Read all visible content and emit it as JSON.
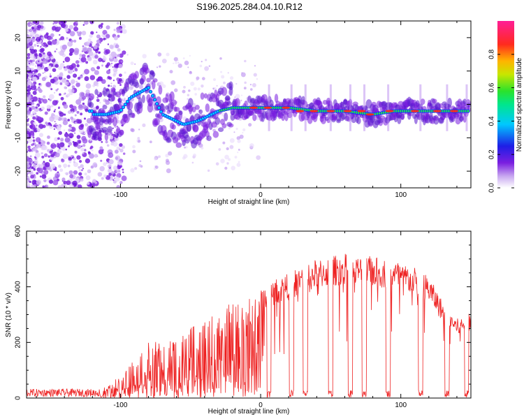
{
  "title": "S196.2025.284.04.10.R12",
  "chart_data": [
    {
      "type": "heatmap",
      "name": "spectrogram",
      "xlabel": "Height of straight line (km)",
      "ylabel": "Frequency (Hz)",
      "xlim": [
        -167,
        150
      ],
      "ylim": [
        -25,
        25
      ],
      "xticks": [
        -100,
        0,
        100
      ],
      "yticks": [
        -20,
        -10,
        0,
        10,
        20
      ],
      "xtick_labels": [
        "-100",
        "0",
        "100"
      ],
      "ytick_labels": [
        "-20",
        "-10",
        "0",
        "10",
        "20"
      ],
      "colorbar": {
        "label": "Normalized spectral amplitude",
        "range": [
          0,
          1
        ],
        "ticks": [
          0.0,
          0.2,
          0.4,
          0.6,
          0.8
        ],
        "tick_labels": [
          "0.0",
          "0.2",
          "0.4",
          "0.6",
          "0.8"
        ],
        "colormap": "rainbow (white-purple-blue-cyan-green-yellow-red-magenta)"
      },
      "ridge": [
        {
          "x": -120,
          "y": -3
        },
        {
          "x": -110,
          "y": -3
        },
        {
          "x": -100,
          "y": -2
        },
        {
          "x": -93,
          "y": 2
        },
        {
          "x": -80,
          "y": 5
        },
        {
          "x": -70,
          "y": -3
        },
        {
          "x": -55,
          "y": -6
        },
        {
          "x": -45,
          "y": -5
        },
        {
          "x": -30,
          "y": -2
        },
        {
          "x": -20,
          "y": -1
        },
        {
          "x": 0,
          "y": -1
        },
        {
          "x": 20,
          "y": -1
        },
        {
          "x": 40,
          "y": -2
        },
        {
          "x": 60,
          "y": -2
        },
        {
          "x": 80,
          "y": -3
        },
        {
          "x": 95,
          "y": -2
        },
        {
          "x": 110,
          "y": -2
        },
        {
          "x": 130,
          "y": -2
        },
        {
          "x": 148,
          "y": -2
        }
      ]
    },
    {
      "type": "line",
      "name": "snr",
      "xlabel": "Height of straight line (km)",
      "ylabel": "SNR (10 * v/v)",
      "xlim": [
        -167,
        150
      ],
      "ylim": [
        0,
        600
      ],
      "xticks": [
        -100,
        0,
        100
      ],
      "yticks": [
        0,
        200,
        400,
        600
      ],
      "xtick_labels": [
        "-100",
        "0",
        "100"
      ],
      "ytick_labels": [
        "0",
        "200",
        "400",
        "600"
      ],
      "color": "#ee2222",
      "envelope": {
        "x": [
          -167,
          -130,
          -120,
          -110,
          -100,
          -90,
          -80,
          -70,
          -60,
          -50,
          -40,
          -30,
          -20,
          -10,
          0,
          10,
          20,
          30,
          40,
          50,
          60,
          70,
          80,
          90,
          100,
          110,
          120,
          130,
          140,
          150
        ],
        "y": [
          20,
          20,
          25,
          40,
          80,
          150,
          200,
          190,
          210,
          240,
          270,
          300,
          330,
          350,
          380,
          420,
          440,
          470,
          490,
          500,
          510,
          500,
          500,
          490,
          480,
          460,
          430,
          340,
          280,
          300
        ]
      },
      "dropouts_x": [
        6,
        22,
        32,
        50,
        64,
        74,
        91,
        114,
        133,
        147
      ]
    }
  ]
}
